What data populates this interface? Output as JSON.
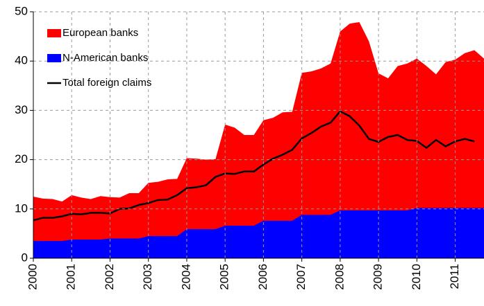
{
  "chart_data": {
    "type": "area",
    "x": [
      2000,
      2000.25,
      2000.5,
      2000.75,
      2001,
      2001.25,
      2001.5,
      2001.75,
      2002,
      2002.25,
      2002.5,
      2002.75,
      2003,
      2003.25,
      2003.5,
      2003.75,
      2004,
      2004.25,
      2004.5,
      2004.75,
      2005,
      2005.25,
      2005.5,
      2005.75,
      2006,
      2006.25,
      2006.5,
      2006.75,
      2007,
      2007.25,
      2007.5,
      2007.75,
      2008,
      2008.25,
      2008.5,
      2008.75,
      2009,
      2009.25,
      2009.5,
      2009.75,
      2010,
      2010.25,
      2010.5,
      2010.75,
      2011,
      2011.25,
      2011.5,
      2011.75
    ],
    "series": [
      {
        "name": "European banks",
        "color": "#ff0000",
        "kind": "area",
        "values": [
          12.5,
          12.1,
          12.0,
          11.5,
          12.8,
          12.3,
          12.0,
          12.6,
          12.4,
          12.3,
          13.2,
          13.2,
          15.3,
          15.5,
          16.0,
          16.1,
          20.3,
          20.2,
          20.0,
          20.1,
          27.1,
          26.5,
          25.0,
          25.0,
          28.0,
          28.5,
          29.6,
          29.7,
          37.6,
          37.9,
          38.5,
          39.5,
          46.0,
          47.6,
          47.9,
          44.0,
          37.5,
          36.5,
          39.0,
          39.5,
          40.5,
          39.0,
          37.3,
          39.8,
          40.3,
          41.6,
          42.2,
          40.5
        ]
      },
      {
        "name": "N-American banks",
        "color": "#0000ff",
        "kind": "area",
        "values": [
          3.5,
          3.5,
          3.5,
          3.5,
          3.8,
          3.8,
          3.8,
          3.8,
          4.0,
          4.0,
          4.0,
          4.0,
          4.5,
          4.5,
          4.5,
          4.5,
          5.9,
          5.9,
          5.9,
          5.9,
          6.6,
          6.6,
          6.6,
          6.6,
          7.6,
          7.6,
          7.6,
          7.6,
          8.8,
          8.8,
          8.8,
          8.8,
          9.7,
          9.7,
          9.7,
          9.7,
          9.7,
          9.7,
          9.7,
          9.7,
          10.2,
          10.2,
          10.2,
          10.2,
          10.2,
          10.2,
          10.2,
          10.2
        ]
      },
      {
        "name": "Total foreign claims",
        "color": "#000000",
        "kind": "line",
        "values": [
          7.7,
          8.2,
          8.2,
          8.5,
          9.0,
          8.9,
          9.2,
          9.2,
          9.1,
          10.0,
          10.1,
          10.8,
          11.2,
          11.8,
          11.9,
          12.8,
          14.2,
          14.4,
          14.8,
          16.5,
          17.2,
          17.1,
          17.6,
          17.6,
          19.0,
          20.2,
          21.0,
          22.0,
          24.3,
          25.4,
          26.7,
          27.5,
          29.8,
          28.8,
          26.9,
          24.2,
          23.6,
          24.6,
          25.0,
          24.0,
          23.8,
          22.4,
          24.0,
          22.7,
          23.7,
          24.2,
          23.7,
          null
        ]
      }
    ],
    "xlim": [
      2000,
      2011.75
    ],
    "xticks": [
      2000,
      2001,
      2002,
      2003,
      2004,
      2005,
      2006,
      2007,
      2008,
      2009,
      2010,
      2011
    ],
    "ylim": [
      0,
      50
    ],
    "yticks": [
      0,
      10,
      20,
      30,
      40,
      50
    ],
    "grid": true,
    "legend": "top-left"
  }
}
